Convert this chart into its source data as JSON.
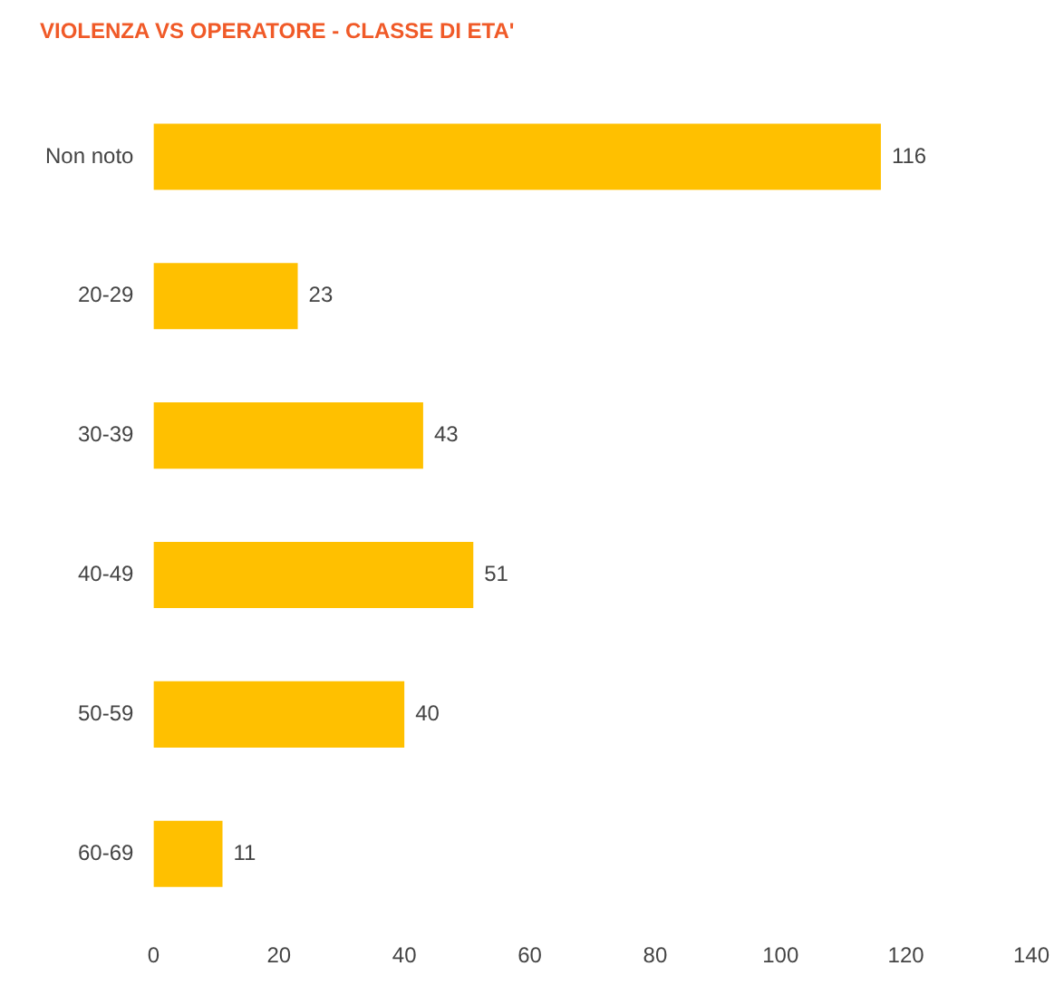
{
  "chart_data": {
    "type": "bar",
    "orientation": "horizontal",
    "title": "VIOLENZA VS OPERATORE - CLASSE DI ETA'",
    "categories": [
      "Non noto",
      "20-29",
      "30-39",
      "40-49",
      "50-59",
      "60-69"
    ],
    "values": [
      116,
      23,
      43,
      51,
      40,
      11
    ],
    "color": "#ffc000",
    "xlim": [
      0,
      140
    ],
    "xticks": [
      0,
      20,
      40,
      60,
      80,
      100,
      120,
      140
    ],
    "grid": false,
    "legend": false,
    "data_labels": true
  }
}
